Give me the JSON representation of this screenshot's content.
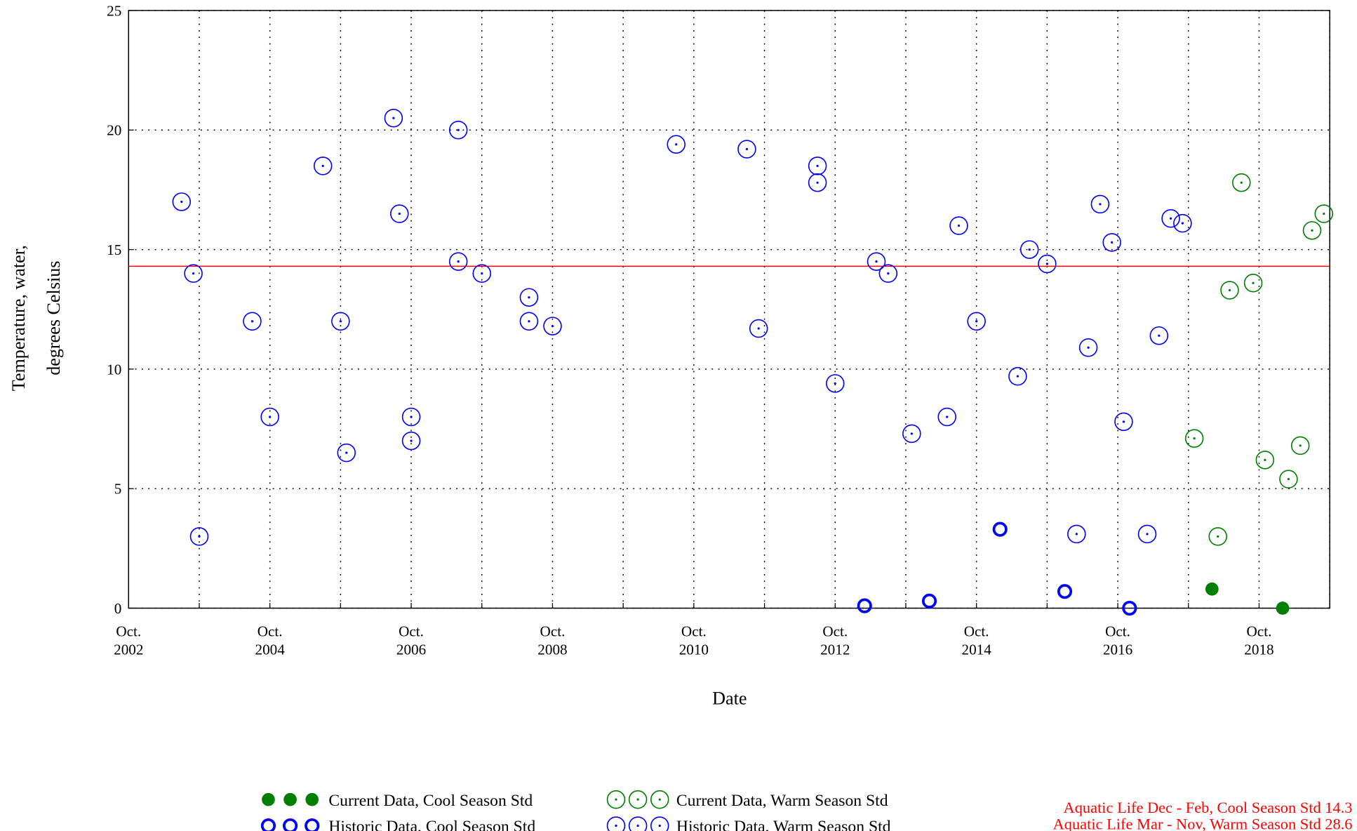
{
  "chart_data": {
    "type": "scatter",
    "xlabel": "Date",
    "ylabel": [
      "Temperature, water,",
      "degrees Celsius"
    ],
    "xlim": [
      "2002-10",
      "2019-10"
    ],
    "xticks": [
      {
        "value": "2002-10",
        "label": "Oct. 2002"
      },
      {
        "value": "2003-10",
        "label": null
      },
      {
        "value": "2004-10",
        "label": "Oct. 2004"
      },
      {
        "value": "2005-10",
        "label": null
      },
      {
        "value": "2006-10",
        "label": "Oct. 2006"
      },
      {
        "value": "2007-10",
        "label": null
      },
      {
        "value": "2008-10",
        "label": "Oct. 2008"
      },
      {
        "value": "2009-10",
        "label": null
      },
      {
        "value": "2010-10",
        "label": "Oct. 2010"
      },
      {
        "value": "2011-10",
        "label": null
      },
      {
        "value": "2012-10",
        "label": "Oct. 2012"
      },
      {
        "value": "2013-10",
        "label": null
      },
      {
        "value": "2014-10",
        "label": "Oct. 2014"
      },
      {
        "value": "2015-10",
        "label": null
      },
      {
        "value": "2016-10",
        "label": "Oct. 2016"
      },
      {
        "value": "2017-10",
        "label": null
      },
      {
        "value": "2018-10",
        "label": "Oct. 2018"
      },
      {
        "value": "2019-10",
        "label": null
      }
    ],
    "ylim": [
      0,
      25
    ],
    "yticks": [
      0,
      5,
      10,
      15,
      20,
      25
    ],
    "grid": true,
    "reference_line": 14.3,
    "reference_color": "#ff0000",
    "series": [
      {
        "name": "Current Data, Cool Season Std",
        "color": "#008000",
        "marker": "filled",
        "x": [
          "2018-02",
          "2019-02"
        ],
        "values": [
          0.8,
          0.0
        ]
      },
      {
        "name": "Historic Data, Cool Season Std",
        "color": "#0000ff",
        "marker": "thick-ring",
        "x": [
          "2013-03",
          "2014-02",
          "2015-02",
          "2016-01",
          "2016-12"
        ],
        "values": [
          0.1,
          0.3,
          3.3,
          0.7,
          0.0
        ]
      },
      {
        "name": "Current Data, Warm Season Std",
        "color": "#008000",
        "marker": "open-dot",
        "x": [
          "2017-11",
          "2018-03",
          "2018-05",
          "2018-07",
          "2018-09",
          "2018-11",
          "2019-03",
          "2019-05",
          "2019-07",
          "2019-09"
        ],
        "values": [
          7.1,
          3.0,
          13.3,
          17.8,
          13.6,
          6.2,
          5.4,
          6.8,
          15.8,
          16.5
        ]
      },
      {
        "name": "Historic Data, Warm Season Std",
        "color": "#0000ff",
        "marker": "open-dot",
        "x": [
          "2003-07",
          "2003-09",
          "2003-10",
          "2004-07",
          "2004-10",
          "2005-07",
          "2005-10",
          "2005-11",
          "2006-07",
          "2006-08",
          "2006-10",
          "2006-10",
          "2007-06",
          "2007-06",
          "2007-10",
          "2008-06",
          "2008-06",
          "2008-10",
          "2010-07",
          "2011-07",
          "2011-09",
          "2012-07",
          "2012-07",
          "2012-10",
          "2013-05",
          "2013-07",
          "2013-11",
          "2014-05",
          "2014-07",
          "2014-10",
          "2015-05",
          "2015-07",
          "2015-10",
          "2016-03",
          "2016-05",
          "2016-07",
          "2016-09",
          "2016-11",
          "2017-03",
          "2017-05",
          "2017-07",
          "2017-09"
        ],
        "values": [
          17.0,
          14.0,
          3.0,
          12.0,
          8.0,
          18.5,
          12.0,
          6.5,
          20.5,
          16.5,
          8.0,
          7.0,
          14.5,
          20.0,
          14.0,
          12.0,
          13.0,
          11.8,
          19.4,
          19.2,
          11.7,
          18.5,
          17.8,
          9.4,
          14.5,
          14.0,
          7.3,
          8.0,
          16.0,
          12.0,
          9.7,
          15.0,
          14.4,
          3.1,
          10.9,
          16.9,
          15.3,
          7.8,
          3.1,
          11.4,
          16.3,
          16.1
        ]
      }
    ],
    "notes": [
      "Aquatic Life Dec - Feb, Cool Season  Std 14.3",
      "Aquatic Life Mar - Nov, Warm Season Std 28.6"
    ],
    "notes_color": "#ff0000"
  }
}
